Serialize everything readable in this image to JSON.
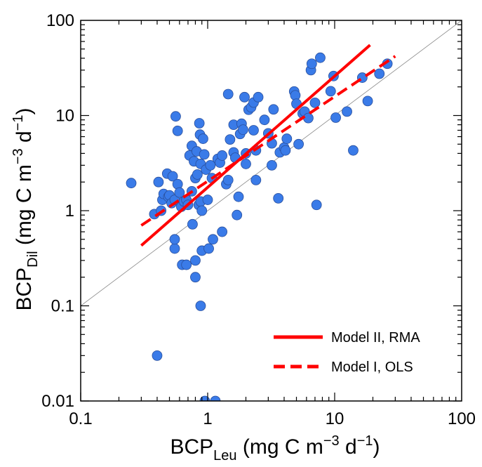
{
  "chart_data": {
    "type": "scatter",
    "x_scale": "log",
    "y_scale": "log",
    "xlim": [
      0.1,
      100
    ],
    "ylim": [
      0.01,
      100
    ],
    "x_ticks": [
      "0.1",
      "1",
      "10",
      "100"
    ],
    "y_ticks": [
      "0.01",
      "0.1",
      "1",
      "10",
      "100"
    ],
    "xlabel": {
      "main": "BCP",
      "sub": "Leu",
      "units": " (mg C m",
      "exp1": "−3",
      "mid": " d",
      "exp2": "−1",
      "close": ")"
    },
    "ylabel": {
      "main": "BCP",
      "sub": "Dil",
      "units": " (mg C m",
      "exp1": "−3",
      "mid": " d",
      "exp2": "−1",
      "close": ")"
    },
    "grid": false,
    "legend_position": "bottom-right",
    "marker_color": "#3a7be8",
    "series": [
      {
        "type": "scatter",
        "points": [
          [
            0.25,
            1.95
          ],
          [
            0.38,
            0.92
          ],
          [
            0.4,
            0.03
          ],
          [
            0.41,
            2.0
          ],
          [
            0.43,
            1.0
          ],
          [
            0.44,
            1.3
          ],
          [
            0.45,
            1.5
          ],
          [
            0.48,
            2.45
          ],
          [
            0.49,
            1.4
          ],
          [
            0.5,
            1.45
          ],
          [
            0.52,
            1.2
          ],
          [
            0.53,
            2.3
          ],
          [
            0.55,
            0.4
          ],
          [
            0.55,
            0.5
          ],
          [
            0.55,
            1.3
          ],
          [
            0.56,
            9.8
          ],
          [
            0.58,
            6.9
          ],
          [
            0.58,
            1.9
          ],
          [
            0.6,
            1.55
          ],
          [
            0.62,
            1.1
          ],
          [
            0.63,
            0.27
          ],
          [
            0.65,
            1.25
          ],
          [
            0.68,
            1.3
          ],
          [
            0.68,
            0.27
          ],
          [
            0.7,
            1.15
          ],
          [
            0.72,
            3.8
          ],
          [
            0.75,
            4.8
          ],
          [
            0.75,
            1.6
          ],
          [
            0.76,
            0.72
          ],
          [
            0.78,
            3.3
          ],
          [
            0.8,
            2.2
          ],
          [
            0.8,
            0.3
          ],
          [
            0.8,
            0.2
          ],
          [
            0.82,
            4.2
          ],
          [
            0.83,
            2.4
          ],
          [
            0.85,
            1.15
          ],
          [
            0.86,
            8.3
          ],
          [
            0.87,
            6.3
          ],
          [
            0.88,
            3.1
          ],
          [
            0.88,
            1.25
          ],
          [
            0.88,
            0.1
          ],
          [
            0.9,
            0.38
          ],
          [
            0.9,
            1.0
          ],
          [
            0.92,
            5.7
          ],
          [
            0.94,
            3.9
          ],
          [
            0.95,
            0.01
          ],
          [
            0.97,
            2.7
          ],
          [
            1.0,
            1.3
          ],
          [
            1.02,
            0.4
          ],
          [
            1.05,
            3.0
          ],
          [
            1.08,
            2.2
          ],
          [
            1.1,
            0.5
          ],
          [
            1.15,
            0.01
          ],
          [
            1.2,
            3.5
          ],
          [
            1.25,
            3.2
          ],
          [
            1.3,
            3.8
          ],
          [
            1.3,
            0.6
          ],
          [
            1.4,
            1.9
          ],
          [
            1.45,
            2.1
          ],
          [
            1.45,
            16.8
          ],
          [
            1.5,
            5.6
          ],
          [
            1.6,
            8.0
          ],
          [
            1.6,
            4.1
          ],
          [
            1.65,
            3.6
          ],
          [
            1.7,
            0.9
          ],
          [
            1.75,
            1.4
          ],
          [
            1.8,
            6.4
          ],
          [
            1.85,
            8.2
          ],
          [
            1.9,
            7.1
          ],
          [
            1.95,
            15.6
          ],
          [
            2.0,
            3.1
          ],
          [
            2.0,
            4.0
          ],
          [
            2.1,
            11.5
          ],
          [
            2.2,
            12.2
          ],
          [
            2.3,
            13.7
          ],
          [
            2.3,
            7.0
          ],
          [
            2.4,
            4.3
          ],
          [
            2.4,
            2.1
          ],
          [
            2.5,
            15.6
          ],
          [
            2.8,
            9.0
          ],
          [
            3.0,
            6.5
          ],
          [
            3.2,
            5.1
          ],
          [
            3.2,
            3.0
          ],
          [
            3.3,
            11.6
          ],
          [
            3.6,
            1.35
          ],
          [
            3.7,
            4.1
          ],
          [
            4.0,
            4.6
          ],
          [
            4.1,
            4.3
          ],
          [
            4.2,
            5.7
          ],
          [
            4.8,
            17.9
          ],
          [
            4.9,
            16.3
          ],
          [
            5.0,
            13.3
          ],
          [
            5.2,
            5.0
          ],
          [
            5.6,
            10.5
          ],
          [
            5.8,
            11.0
          ],
          [
            6.2,
            9.4
          ],
          [
            6.5,
            30.0
          ],
          [
            6.6,
            35.0
          ],
          [
            7.0,
            13.6
          ],
          [
            7.2,
            1.15
          ],
          [
            7.7,
            40.5
          ],
          [
            9.3,
            18.0
          ],
          [
            9.8,
            26.0
          ],
          [
            10.2,
            9.5
          ],
          [
            12.5,
            11.0
          ],
          [
            14.0,
            4.3
          ],
          [
            16.5,
            25.0
          ],
          [
            18.2,
            14.2
          ],
          [
            22.5,
            27.5
          ],
          [
            26.0,
            35.0
          ]
        ]
      },
      {
        "name": "Model II, RMA",
        "type": "line",
        "style": "solid",
        "color": "#ff0000",
        "x": [
          0.3,
          19
        ],
        "y": [
          0.43,
          55
        ]
      },
      {
        "name": "Model I, OLS",
        "type": "line",
        "style": "dashed",
        "color": "#ff0000",
        "x": [
          0.3,
          30
        ],
        "y": [
          0.7,
          42
        ]
      },
      {
        "type": "line",
        "style": "thin",
        "color": "#888888",
        "x": [
          0.1,
          100
        ],
        "y": [
          0.1,
          100
        ]
      }
    ]
  }
}
